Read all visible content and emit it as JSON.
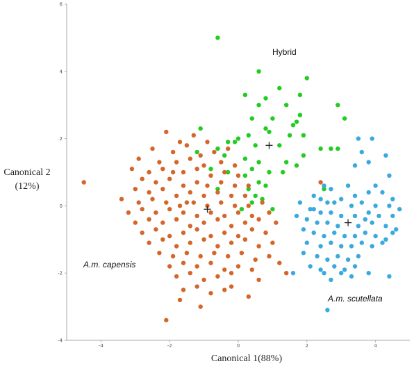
{
  "chart_data": {
    "type": "scatter",
    "xlabel_parts": [
      "Canonical 1",
      "(88%)"
    ],
    "ylabel_parts": [
      "Canonical 2",
      "(12%)"
    ],
    "xlim": [
      -5,
      5
    ],
    "ylim": [
      -4,
      6
    ],
    "x_ticks": [
      -4,
      -2,
      0,
      2,
      4
    ],
    "x_tick_labels": [
      "-4",
      "-2",
      "0",
      "2",
      "4"
    ],
    "y_ticks": [
      -4,
      -2,
      0,
      2,
      4,
      6
    ],
    "y_tick_labels": [
      "-4",
      "-2",
      "0",
      "2",
      "4",
      "6"
    ],
    "grid": false,
    "colors": {
      "capensis": "#d4662a",
      "hybrid": "#22cc22",
      "scutellata": "#3aa9dd",
      "centroid": "#222222",
      "axis": "#aaaaaa"
    },
    "group_labels": {
      "hybrid": "Hybrid",
      "capensis": "A.m. capensis",
      "scutellata": "A.m. scutellata"
    },
    "centroids": [
      {
        "group": "capensis",
        "x": -0.9,
        "y": -0.1
      },
      {
        "group": "hybrid",
        "x": 0.9,
        "y": 1.8
      },
      {
        "group": "scutellata",
        "x": 3.2,
        "y": -0.5
      }
    ],
    "series": [
      {
        "group": "hybrid",
        "points": [
          [
            -0.6,
            5.0
          ],
          [
            0.6,
            4.0
          ],
          [
            2.0,
            3.8
          ],
          [
            1.2,
            3.5
          ],
          [
            0.2,
            3.3
          ],
          [
            0.8,
            3.2
          ],
          [
            1.8,
            3.3
          ],
          [
            0.6,
            3.0
          ],
          [
            1.4,
            3.0
          ],
          [
            2.9,
            3.0
          ],
          [
            3.1,
            2.6
          ],
          [
            1.8,
            2.7
          ],
          [
            1.0,
            2.6
          ],
          [
            0.4,
            2.6
          ],
          [
            1.6,
            2.4
          ],
          [
            1.7,
            2.5
          ],
          [
            0.8,
            2.3
          ],
          [
            -1.1,
            2.3
          ],
          [
            1.5,
            2.1
          ],
          [
            0.9,
            2.2
          ],
          [
            0.3,
            2.1
          ],
          [
            1.9,
            2.1
          ],
          [
            0.0,
            2.0
          ],
          [
            -0.3,
            1.9
          ],
          [
            -0.1,
            1.9
          ],
          [
            0.5,
            1.8
          ],
          [
            1.2,
            1.8
          ],
          [
            -0.6,
            1.7
          ],
          [
            -1.2,
            1.6
          ],
          [
            2.4,
            1.7
          ],
          [
            2.7,
            1.7
          ],
          [
            2.9,
            1.7
          ],
          [
            -0.4,
            1.5
          ],
          [
            0.2,
            1.4
          ],
          [
            0.6,
            1.3
          ],
          [
            1.4,
            1.3
          ],
          [
            1.9,
            1.5
          ],
          [
            1.7,
            1.2
          ],
          [
            1.3,
            1.0
          ],
          [
            -0.8,
            1.1
          ],
          [
            0.4,
            1.1
          ],
          [
            0.9,
            1.0
          ],
          [
            -0.3,
            1.0
          ],
          [
            0.2,
            0.9
          ],
          [
            0.6,
            0.7
          ],
          [
            0.8,
            0.6
          ],
          [
            0.3,
            0.5
          ],
          [
            -0.6,
            0.5
          ],
          [
            0.5,
            0.3
          ],
          [
            0.7,
            0.2
          ],
          [
            0.4,
            0.1
          ],
          [
            2.5,
            0.5
          ],
          [
            1.0,
            -0.1
          ],
          [
            0.1,
            -0.1
          ]
        ]
      },
      {
        "group": "scutellata",
        "points": [
          [
            3.5,
            2.0
          ],
          [
            3.9,
            2.0
          ],
          [
            3.6,
            1.6
          ],
          [
            4.3,
            1.5
          ],
          [
            3.8,
            1.3
          ],
          [
            4.4,
            0.9
          ],
          [
            3.4,
            1.2
          ],
          [
            4.0,
            0.6
          ],
          [
            2.5,
            0.6
          ],
          [
            2.7,
            0.5
          ],
          [
            3.2,
            0.6
          ],
          [
            3.4,
            0.3
          ],
          [
            3.8,
            0.4
          ],
          [
            4.2,
            0.4
          ],
          [
            4.5,
            0.2
          ],
          [
            2.2,
            0.3
          ],
          [
            2.4,
            0.2
          ],
          [
            2.6,
            0.1
          ],
          [
            2.8,
            0.1
          ],
          [
            3.0,
            0.2
          ],
          [
            3.3,
            0.0
          ],
          [
            3.6,
            0.1
          ],
          [
            4.0,
            0.0
          ],
          [
            4.4,
            0.0
          ],
          [
            4.7,
            -0.1
          ],
          [
            1.8,
            0.1
          ],
          [
            2.1,
            -0.1
          ],
          [
            2.4,
            -0.2
          ],
          [
            2.7,
            -0.2
          ],
          [
            3.0,
            -0.3
          ],
          [
            3.4,
            -0.3
          ],
          [
            3.8,
            -0.2
          ],
          [
            4.1,
            -0.3
          ],
          [
            4.5,
            -0.3
          ],
          [
            1.7,
            -0.3
          ],
          [
            2.0,
            -0.4
          ],
          [
            2.3,
            -0.5
          ],
          [
            2.6,
            -0.5
          ],
          [
            2.9,
            -0.6
          ],
          [
            3.5,
            -0.6
          ],
          [
            3.9,
            -0.5
          ],
          [
            4.3,
            -0.6
          ],
          [
            4.6,
            -0.7
          ],
          [
            1.9,
            -0.7
          ],
          [
            2.2,
            -0.8
          ],
          [
            2.5,
            -0.9
          ],
          [
            2.8,
            -0.8
          ],
          [
            3.1,
            -0.9
          ],
          [
            3.4,
            -0.9
          ],
          [
            3.7,
            -0.8
          ],
          [
            4.0,
            -0.9
          ],
          [
            4.3,
            -1.0
          ],
          [
            4.5,
            -0.8
          ],
          [
            2.0,
            -1.1
          ],
          [
            2.4,
            -1.2
          ],
          [
            2.7,
            -1.1
          ],
          [
            3.0,
            -1.2
          ],
          [
            3.3,
            -1.2
          ],
          [
            3.6,
            -1.1
          ],
          [
            3.9,
            -1.2
          ],
          [
            4.2,
            -1.1
          ],
          [
            1.9,
            -1.4
          ],
          [
            2.3,
            -1.5
          ],
          [
            2.6,
            -1.6
          ],
          [
            2.9,
            -1.5
          ],
          [
            3.2,
            -1.6
          ],
          [
            3.5,
            -1.5
          ],
          [
            2.1,
            -1.8
          ],
          [
            2.4,
            -1.9
          ],
          [
            2.8,
            -1.8
          ],
          [
            3.1,
            -1.9
          ],
          [
            3.4,
            -1.8
          ],
          [
            1.6,
            -2.0
          ],
          [
            2.5,
            -2.0
          ],
          [
            3.0,
            -2.0
          ],
          [
            3.3,
            -2.1
          ],
          [
            4.4,
            -2.1
          ],
          [
            2.7,
            -2.2
          ],
          [
            3.8,
            -2.0
          ],
          [
            2.6,
            -3.1
          ],
          [
            2.2,
            -0.1
          ],
          [
            3.7,
            -0.4
          ]
        ]
      },
      {
        "group": "capensis",
        "points": [
          [
            -4.5,
            0.7
          ],
          [
            -2.1,
            2.2
          ],
          [
            -1.7,
            1.9
          ],
          [
            -1.3,
            2.1
          ],
          [
            -0.9,
            1.9
          ],
          [
            -2.5,
            1.7
          ],
          [
            -1.9,
            1.6
          ],
          [
            -1.5,
            1.8
          ],
          [
            -1.1,
            1.5
          ],
          [
            -0.7,
            1.6
          ],
          [
            -0.3,
            1.7
          ],
          [
            -2.9,
            1.4
          ],
          [
            -2.3,
            1.3
          ],
          [
            -1.8,
            1.3
          ],
          [
            -1.4,
            1.4
          ],
          [
            -1.0,
            1.2
          ],
          [
            -0.5,
            1.3
          ],
          [
            -0.1,
            1.2
          ],
          [
            -3.1,
            1.1
          ],
          [
            -2.6,
            1.0
          ],
          [
            -2.2,
            1.1
          ],
          [
            -1.6,
            1.0
          ],
          [
            -1.2,
            1.1
          ],
          [
            -0.8,
            0.9
          ],
          [
            -0.4,
            1.0
          ],
          [
            0.0,
            0.9
          ],
          [
            -2.8,
            0.8
          ],
          [
            -2.4,
            0.7
          ],
          [
            -2.0,
            0.8
          ],
          [
            -1.6,
            0.6
          ],
          [
            -1.2,
            0.7
          ],
          [
            -0.9,
            0.6
          ],
          [
            -0.5,
            0.7
          ],
          [
            -0.1,
            0.6
          ],
          [
            0.3,
            0.6
          ],
          [
            -3.0,
            0.5
          ],
          [
            -2.6,
            0.4
          ],
          [
            -2.2,
            0.5
          ],
          [
            -1.8,
            0.3
          ],
          [
            -1.4,
            0.4
          ],
          [
            -1.0,
            0.3
          ],
          [
            -0.6,
            0.4
          ],
          [
            -0.2,
            0.3
          ],
          [
            0.2,
            0.3
          ],
          [
            -3.4,
            0.2
          ],
          [
            -2.9,
            0.1
          ],
          [
            -2.5,
            0.2
          ],
          [
            -2.1,
            0.1
          ],
          [
            -1.7,
            0.0
          ],
          [
            -1.3,
            0.1
          ],
          [
            -0.9,
            0.0
          ],
          [
            -0.5,
            0.1
          ],
          [
            -0.1,
            0.0
          ],
          [
            0.3,
            0.0
          ],
          [
            0.7,
            0.1
          ],
          [
            -3.2,
            -0.2
          ],
          [
            -2.8,
            -0.1
          ],
          [
            -2.4,
            -0.2
          ],
          [
            -2.0,
            -0.1
          ],
          [
            -1.6,
            -0.2
          ],
          [
            -1.2,
            -0.3
          ],
          [
            -0.8,
            -0.2
          ],
          [
            -0.4,
            -0.3
          ],
          [
            0.0,
            -0.2
          ],
          [
            0.4,
            -0.3
          ],
          [
            0.9,
            -0.2
          ],
          [
            -3.0,
            -0.5
          ],
          [
            -2.6,
            -0.4
          ],
          [
            -2.2,
            -0.5
          ],
          [
            -1.8,
            -0.4
          ],
          [
            -1.4,
            -0.6
          ],
          [
            -1.0,
            -0.5
          ],
          [
            -0.6,
            -0.4
          ],
          [
            -0.2,
            -0.6
          ],
          [
            0.2,
            -0.5
          ],
          [
            0.6,
            -0.4
          ],
          [
            1.1,
            -0.5
          ],
          [
            -2.8,
            -0.8
          ],
          [
            -2.4,
            -0.7
          ],
          [
            -2.0,
            -0.9
          ],
          [
            -1.6,
            -0.8
          ],
          [
            -1.2,
            -0.7
          ],
          [
            -0.8,
            -0.9
          ],
          [
            -0.4,
            -0.8
          ],
          [
            0.0,
            -0.9
          ],
          [
            0.4,
            -0.7
          ],
          [
            0.8,
            -0.8
          ],
          [
            -2.6,
            -1.1
          ],
          [
            -2.2,
            -1.0
          ],
          [
            -1.8,
            -1.2
          ],
          [
            -1.4,
            -1.1
          ],
          [
            -1.0,
            -1.0
          ],
          [
            -0.6,
            -1.2
          ],
          [
            -0.2,
            -1.1
          ],
          [
            0.2,
            -1.0
          ],
          [
            0.6,
            -1.2
          ],
          [
            1.0,
            -1.1
          ],
          [
            -2.3,
            -1.4
          ],
          [
            -1.9,
            -1.5
          ],
          [
            -1.5,
            -1.4
          ],
          [
            -1.1,
            -1.5
          ],
          [
            -0.7,
            -1.4
          ],
          [
            -0.3,
            -1.5
          ],
          [
            0.1,
            -1.4
          ],
          [
            0.5,
            -1.6
          ],
          [
            0.9,
            -1.5
          ],
          [
            -2.0,
            -1.8
          ],
          [
            -1.6,
            -1.7
          ],
          [
            -1.2,
            -1.8
          ],
          [
            -0.8,
            -1.7
          ],
          [
            -0.4,
            -1.9
          ],
          [
            0.0,
            -1.8
          ],
          [
            0.4,
            -1.9
          ],
          [
            -1.8,
            -2.1
          ],
          [
            -1.4,
            -2.0
          ],
          [
            -1.0,
            -2.2
          ],
          [
            -0.6,
            -2.1
          ],
          [
            -0.2,
            -2.0
          ],
          [
            0.6,
            -2.2
          ],
          [
            -1.6,
            -2.5
          ],
          [
            -1.2,
            -2.4
          ],
          [
            -0.8,
            -2.6
          ],
          [
            -0.4,
            -2.5
          ],
          [
            0.3,
            -2.7
          ],
          [
            -1.7,
            -2.8
          ],
          [
            -1.1,
            -3.0
          ],
          [
            -2.1,
            -3.4
          ],
          [
            1.4,
            -2.0
          ],
          [
            1.2,
            -1.7
          ],
          [
            2.4,
            0.7
          ],
          [
            -1.5,
            0.1
          ],
          [
            -1.9,
            1.0
          ],
          [
            -0.2,
            -2.4
          ]
        ]
      }
    ]
  }
}
